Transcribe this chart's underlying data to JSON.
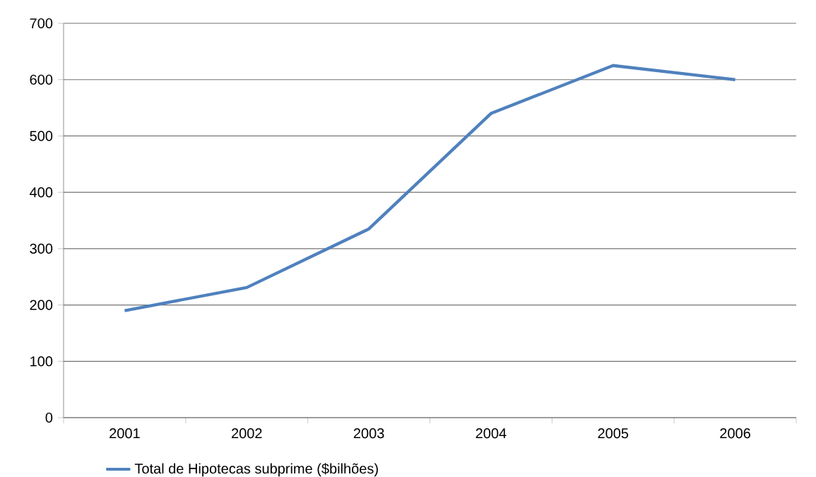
{
  "chart_data": {
    "type": "line",
    "categories": [
      "2001",
      "2002",
      "2003",
      "2004",
      "2005",
      "2006"
    ],
    "series": [
      {
        "name": "Total de Hipotecas subprime ($bilhões)",
        "color": "#4f81bd",
        "values": [
          190,
          231,
          335,
          540,
          625,
          600
        ]
      }
    ],
    "ylim": [
      0,
      700
    ],
    "yticks": [
      0,
      100,
      200,
      300,
      400,
      500,
      600,
      700
    ],
    "grid": "y",
    "legend": "bottom",
    "marker": "none",
    "line_style": "solid"
  }
}
